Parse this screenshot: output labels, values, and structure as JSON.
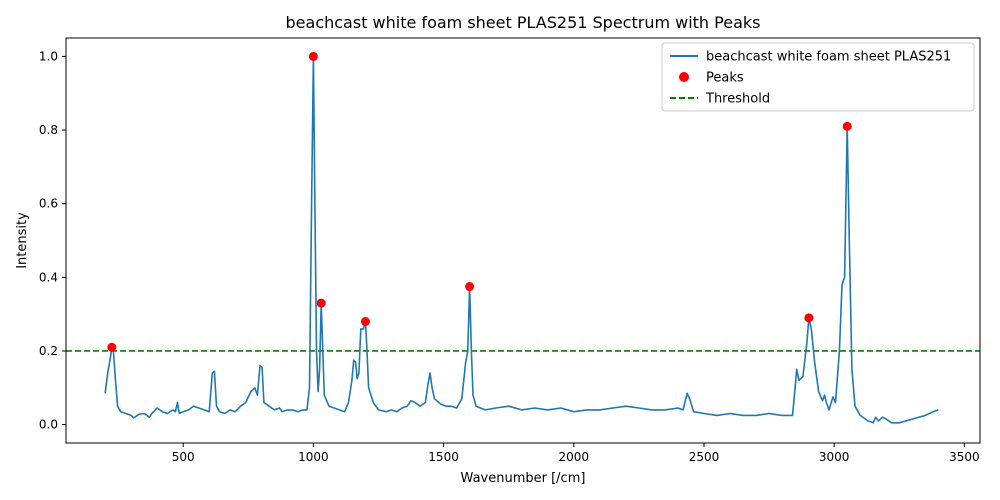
{
  "chart_data": {
    "type": "line",
    "title": "beachcast white foam sheet PLAS251 Spectrum with Peaks",
    "xlabel": "Wavenumber [/cm]",
    "ylabel": "Intensity",
    "xlim": [
      50,
      3560
    ],
    "ylim": [
      -0.05,
      1.05
    ],
    "xticks": [
      500,
      1000,
      1500,
      2000,
      2500,
      3000,
      3500
    ],
    "yticks": [
      0.0,
      0.2,
      0.4,
      0.6,
      0.8,
      1.0
    ],
    "grid": false,
    "legend_position": "top-right",
    "series": [
      {
        "name": "beachcast white foam sheet PLAS251",
        "color": "#1f77b4",
        "points": [
          [
            200,
            0.085
          ],
          [
            210,
            0.14
          ],
          [
            220,
            0.18
          ],
          [
            226,
            0.21
          ],
          [
            232,
            0.2
          ],
          [
            240,
            0.12
          ],
          [
            248,
            0.05
          ],
          [
            260,
            0.035
          ],
          [
            280,
            0.03
          ],
          [
            300,
            0.025
          ],
          [
            310,
            0.018
          ],
          [
            330,
            0.028
          ],
          [
            350,
            0.03
          ],
          [
            370,
            0.02
          ],
          [
            380,
            0.03
          ],
          [
            400,
            0.045
          ],
          [
            420,
            0.035
          ],
          [
            440,
            0.03
          ],
          [
            460,
            0.04
          ],
          [
            470,
            0.035
          ],
          [
            478,
            0.06
          ],
          [
            485,
            0.03
          ],
          [
            500,
            0.035
          ],
          [
            520,
            0.04
          ],
          [
            540,
            0.05
          ],
          [
            560,
            0.045
          ],
          [
            580,
            0.04
          ],
          [
            600,
            0.035
          ],
          [
            612,
            0.14
          ],
          [
            620,
            0.145
          ],
          [
            628,
            0.05
          ],
          [
            640,
            0.035
          ],
          [
            660,
            0.03
          ],
          [
            680,
            0.04
          ],
          [
            700,
            0.035
          ],
          [
            720,
            0.05
          ],
          [
            740,
            0.06
          ],
          [
            760,
            0.09
          ],
          [
            775,
            0.1
          ],
          [
            785,
            0.08
          ],
          [
            795,
            0.16
          ],
          [
            803,
            0.155
          ],
          [
            810,
            0.06
          ],
          [
            830,
            0.05
          ],
          [
            850,
            0.04
          ],
          [
            870,
            0.045
          ],
          [
            880,
            0.035
          ],
          [
            900,
            0.04
          ],
          [
            920,
            0.04
          ],
          [
            940,
            0.035
          ],
          [
            960,
            0.04
          ],
          [
            975,
            0.04
          ],
          [
            985,
            0.1
          ],
          [
            993,
            0.6
          ],
          [
            1000,
            1.0
          ],
          [
            1006,
            0.6
          ],
          [
            1012,
            0.2
          ],
          [
            1018,
            0.09
          ],
          [
            1024,
            0.15
          ],
          [
            1030,
            0.33
          ],
          [
            1036,
            0.2
          ],
          [
            1042,
            0.08
          ],
          [
            1060,
            0.05
          ],
          [
            1080,
            0.045
          ],
          [
            1100,
            0.04
          ],
          [
            1120,
            0.035
          ],
          [
            1135,
            0.06
          ],
          [
            1148,
            0.12
          ],
          [
            1155,
            0.175
          ],
          [
            1162,
            0.17
          ],
          [
            1168,
            0.125
          ],
          [
            1175,
            0.14
          ],
          [
            1182,
            0.26
          ],
          [
            1192,
            0.26
          ],
          [
            1200,
            0.28
          ],
          [
            1206,
            0.2
          ],
          [
            1212,
            0.1
          ],
          [
            1230,
            0.06
          ],
          [
            1250,
            0.04
          ],
          [
            1280,
            0.035
          ],
          [
            1300,
            0.04
          ],
          [
            1320,
            0.035
          ],
          [
            1340,
            0.045
          ],
          [
            1360,
            0.05
          ],
          [
            1375,
            0.065
          ],
          [
            1390,
            0.06
          ],
          [
            1410,
            0.05
          ],
          [
            1430,
            0.06
          ],
          [
            1440,
            0.11
          ],
          [
            1448,
            0.14
          ],
          [
            1456,
            0.1
          ],
          [
            1465,
            0.07
          ],
          [
            1490,
            0.055
          ],
          [
            1510,
            0.05
          ],
          [
            1530,
            0.05
          ],
          [
            1550,
            0.045
          ],
          [
            1570,
            0.07
          ],
          [
            1585,
            0.17
          ],
          [
            1593,
            0.2
          ],
          [
            1600,
            0.375
          ],
          [
            1607,
            0.2
          ],
          [
            1613,
            0.08
          ],
          [
            1625,
            0.05
          ],
          [
            1660,
            0.04
          ],
          [
            1700,
            0.045
          ],
          [
            1750,
            0.05
          ],
          [
            1800,
            0.04
          ],
          [
            1850,
            0.045
          ],
          [
            1900,
            0.04
          ],
          [
            1950,
            0.045
          ],
          [
            2000,
            0.035
          ],
          [
            2050,
            0.04
          ],
          [
            2100,
            0.04
          ],
          [
            2150,
            0.045
          ],
          [
            2200,
            0.05
          ],
          [
            2250,
            0.045
          ],
          [
            2300,
            0.04
          ],
          [
            2350,
            0.04
          ],
          [
            2400,
            0.045
          ],
          [
            2420,
            0.04
          ],
          [
            2435,
            0.085
          ],
          [
            2445,
            0.07
          ],
          [
            2460,
            0.035
          ],
          [
            2500,
            0.03
          ],
          [
            2550,
            0.025
          ],
          [
            2600,
            0.03
          ],
          [
            2650,
            0.025
          ],
          [
            2700,
            0.025
          ],
          [
            2750,
            0.03
          ],
          [
            2800,
            0.025
          ],
          [
            2840,
            0.025
          ],
          [
            2850,
            0.1
          ],
          [
            2856,
            0.15
          ],
          [
            2865,
            0.12
          ],
          [
            2880,
            0.13
          ],
          [
            2895,
            0.22
          ],
          [
            2903,
            0.29
          ],
          [
            2912,
            0.26
          ],
          [
            2925,
            0.17
          ],
          [
            2940,
            0.09
          ],
          [
            2955,
            0.065
          ],
          [
            2963,
            0.08
          ],
          [
            2970,
            0.06
          ],
          [
            2980,
            0.04
          ],
          [
            2995,
            0.075
          ],
          [
            3005,
            0.06
          ],
          [
            3020,
            0.2
          ],
          [
            3030,
            0.38
          ],
          [
            3040,
            0.4
          ],
          [
            3050,
            0.81
          ],
          [
            3058,
            0.5
          ],
          [
            3068,
            0.15
          ],
          [
            3080,
            0.05
          ],
          [
            3100,
            0.025
          ],
          [
            3130,
            0.01
          ],
          [
            3150,
            0.005
          ],
          [
            3160,
            0.02
          ],
          [
            3170,
            0.01
          ],
          [
            3185,
            0.02
          ],
          [
            3200,
            0.015
          ],
          [
            3220,
            0.005
          ],
          [
            3250,
            0.005
          ],
          [
            3300,
            0.015
          ],
          [
            3350,
            0.025
          ],
          [
            3380,
            0.035
          ],
          [
            3400,
            0.04
          ]
        ]
      },
      {
        "name": "Peaks",
        "color": "#ff0000",
        "points": [
          [
            226,
            0.21
          ],
          [
            1000,
            1.0
          ],
          [
            1030,
            0.33
          ],
          [
            1200,
            0.28
          ],
          [
            1600,
            0.375
          ],
          [
            2903,
            0.29
          ],
          [
            3050,
            0.81
          ]
        ]
      },
      {
        "name": "Threshold",
        "color": "#008000",
        "y": 0.2
      }
    ]
  }
}
